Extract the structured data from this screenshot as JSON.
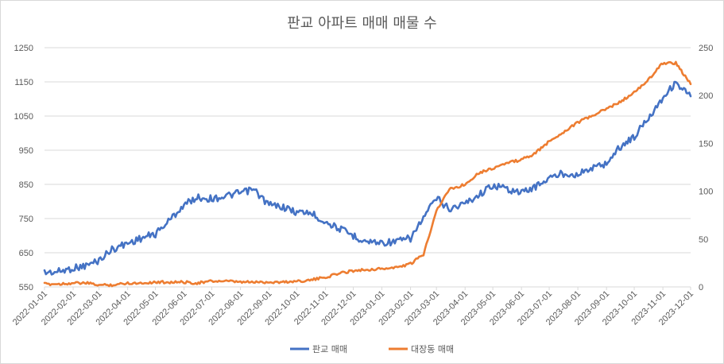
{
  "chart_data": {
    "type": "line",
    "title": "판교 아파트 매매 매물 수",
    "xlabel": "",
    "ylabel": "",
    "grid": true,
    "legend_position": "bottom",
    "x_ticks": [
      "2022-01-01",
      "2022-02-01",
      "2022-03-01",
      "2022-04-01",
      "2022-05-01",
      "2022-06-01",
      "2022-07-01",
      "2022-08-01",
      "2022-09-01",
      "2022-10-01",
      "2022-11-01",
      "2022-12-01",
      "2023-01-01",
      "2023-02-01",
      "2023-03-01",
      "2023-04-01",
      "2023-05-01",
      "2023-06-01",
      "2023-07-01",
      "2023-08-01",
      "2023-09-01",
      "2023-10-01",
      "2023-11-01",
      "2023-12-01"
    ],
    "y_left": {
      "ticks": [
        550,
        650,
        750,
        850,
        950,
        1050,
        1150,
        1250
      ],
      "ylim": [
        550,
        1250
      ]
    },
    "y_right": {
      "ticks": [
        0,
        50,
        100,
        150,
        200,
        250
      ],
      "ylim": [
        0,
        250
      ]
    },
    "series": [
      {
        "name": "판교 매매",
        "axis": "left",
        "color": "#4472C4",
        "x": [
          "2022-01-01",
          "2022-01-15",
          "2022-02-01",
          "2022-02-15",
          "2022-03-01",
          "2022-03-15",
          "2022-04-01",
          "2022-04-15",
          "2022-05-01",
          "2022-05-15",
          "2022-06-01",
          "2022-06-15",
          "2022-07-01",
          "2022-07-15",
          "2022-08-01",
          "2022-08-15",
          "2022-09-01",
          "2022-09-15",
          "2022-10-01",
          "2022-10-15",
          "2022-11-01",
          "2022-11-15",
          "2022-12-01",
          "2022-12-15",
          "2023-01-01",
          "2023-01-15",
          "2023-02-01",
          "2023-02-15",
          "2023-03-01",
          "2023-03-15",
          "2023-04-01",
          "2023-04-15",
          "2023-05-01",
          "2023-05-15",
          "2023-06-01",
          "2023-06-15",
          "2023-07-01",
          "2023-07-15",
          "2023-08-01",
          "2023-08-15",
          "2023-09-01",
          "2023-09-15",
          "2023-10-01",
          "2023-10-15",
          "2023-11-01",
          "2023-11-15",
          "2023-12-01"
        ],
        "y": [
          592,
          594,
          605,
          612,
          628,
          660,
          678,
          692,
          705,
          742,
          790,
          812,
          808,
          815,
          825,
          835,
          790,
          785,
          768,
          768,
          740,
          722,
          700,
          683,
          680,
          682,
          692,
          752,
          810,
          778,
          795,
          818,
          848,
          838,
          825,
          842,
          868,
          882,
          880,
          896,
          912,
          958,
          990,
          1040,
          1105,
          1148,
          1108
        ]
      },
      {
        "name": "대장동 매매",
        "axis": "right",
        "color": "#ED7D31",
        "x": [
          "2022-01-01",
          "2022-01-15",
          "2022-02-01",
          "2022-02-15",
          "2022-03-01",
          "2022-03-15",
          "2022-04-01",
          "2022-04-15",
          "2022-05-01",
          "2022-05-15",
          "2022-06-01",
          "2022-06-15",
          "2022-07-01",
          "2022-07-15",
          "2022-08-01",
          "2022-08-15",
          "2022-09-01",
          "2022-09-15",
          "2022-10-01",
          "2022-10-15",
          "2022-11-01",
          "2022-11-15",
          "2022-12-01",
          "2022-12-15",
          "2023-01-01",
          "2023-01-15",
          "2023-02-01",
          "2023-02-15",
          "2023-03-01",
          "2023-03-15",
          "2023-04-01",
          "2023-04-15",
          "2023-05-01",
          "2023-05-15",
          "2023-06-01",
          "2023-06-15",
          "2023-07-01",
          "2023-07-15",
          "2023-08-01",
          "2023-08-15",
          "2023-09-01",
          "2023-09-15",
          "2023-10-01",
          "2023-10-15",
          "2023-11-01",
          "2023-11-15",
          "2023-12-01"
        ],
        "y": [
          3,
          3,
          4,
          4,
          2,
          2,
          4,
          4,
          5,
          5,
          5,
          4,
          6,
          6,
          5,
          5,
          5,
          5,
          6,
          7,
          10,
          14,
          17,
          18,
          19,
          20,
          24,
          34,
          80,
          102,
          107,
          119,
          124,
          129,
          133,
          139,
          152,
          161,
          172,
          178,
          186,
          193,
          203,
          215,
          234,
          234,
          212
        ]
      }
    ]
  }
}
